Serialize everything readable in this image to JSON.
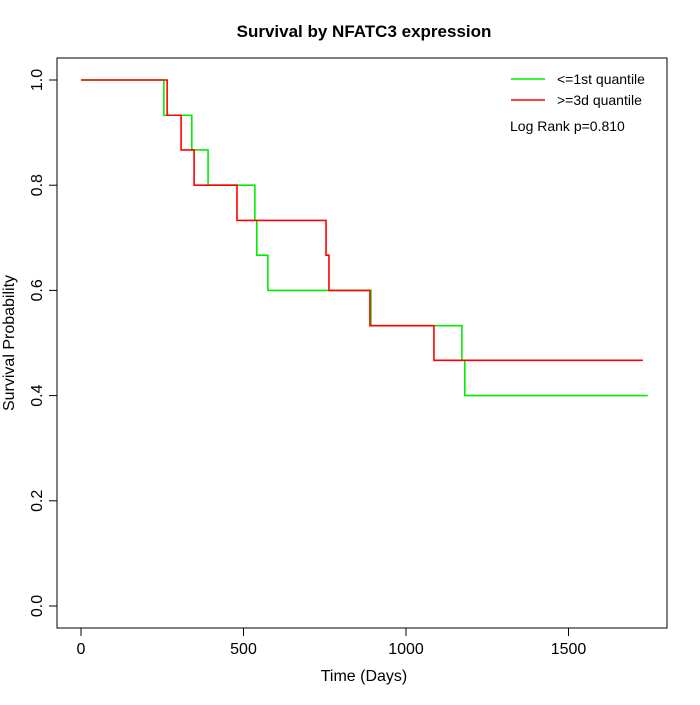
{
  "chart_data": {
    "type": "line",
    "subtype": "kaplan-meier step",
    "title": "Survival by NFATC3 expression",
    "xlabel": "Time (Days)",
    "ylabel": "Survival Probability",
    "xlim": [
      0,
      1750
    ],
    "ylim": [
      0,
      1
    ],
    "xticks": [
      0,
      500,
      1000,
      1500
    ],
    "xtick_labels": [
      "0",
      "500",
      "1000",
      "1500"
    ],
    "yticks": [
      0,
      0.2,
      0.4,
      0.6,
      0.8,
      1.0
    ],
    "ytick_labels": [
      "0.0",
      "0.2",
      "0.4",
      "0.6",
      "0.8",
      "1.0"
    ],
    "grid": false,
    "legend_position": "top-right",
    "annotation": "Log Rank p=0.810",
    "series": [
      {
        "name": "<=1st quantile",
        "color": "#00ee00",
        "times": [
          0,
          255,
          341,
          391,
          535,
          541,
          575,
          892,
          1172,
          1181,
          1744
        ],
        "survival": [
          1.0,
          0.933,
          0.867,
          0.8,
          0.733,
          0.667,
          0.6,
          0.533,
          0.467,
          0.4,
          0.4
        ]
      },
      {
        "name": ">=3d quantile",
        "color": "#ff0000",
        "times": [
          0,
          265,
          308,
          348,
          480,
          754,
          763,
          889,
          1086,
          1729
        ],
        "survival": [
          1.0,
          0.933,
          0.867,
          0.8,
          0.733,
          0.667,
          0.6,
          0.533,
          0.467,
          0.467
        ]
      }
    ]
  }
}
